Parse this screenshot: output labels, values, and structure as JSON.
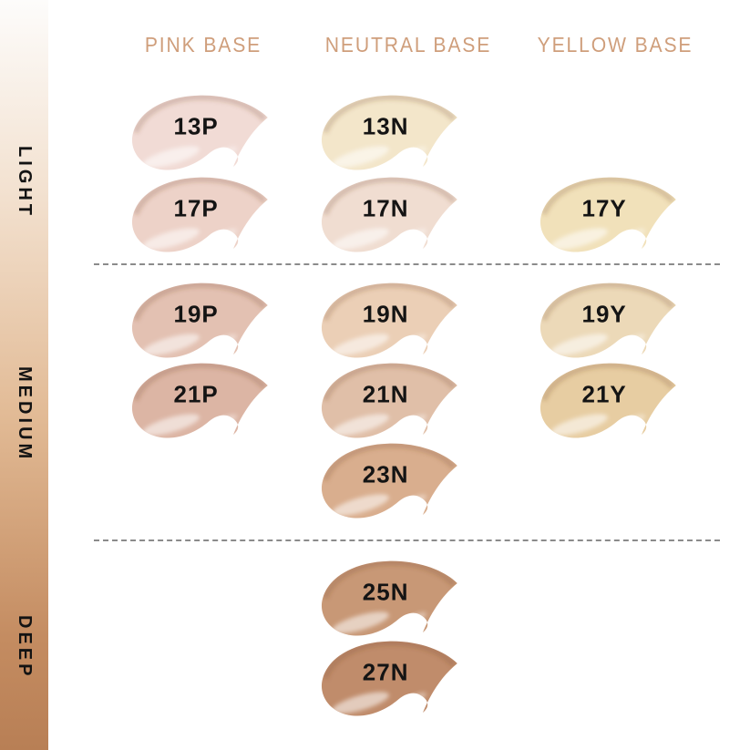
{
  "depth_axis": {
    "labels": [
      "LIGHT",
      "MEDIUM",
      "DEEP"
    ],
    "gradient": [
      "#fdfcfb",
      "#f3e2d1",
      "#e2bb96",
      "#c48c61",
      "#b87f55"
    ]
  },
  "columns": [
    {
      "id": "pink",
      "label": "PINK BASE"
    },
    {
      "id": "neutral",
      "label": "NEUTRAL BASE"
    },
    {
      "id": "yellow",
      "label": "YELLOW BASE"
    }
  ],
  "sections": [
    {
      "name": "LIGHT",
      "rows": [
        1,
        2
      ]
    },
    {
      "name": "MEDIUM",
      "rows": [
        3,
        4,
        5
      ]
    },
    {
      "name": "DEEP",
      "rows": [
        6,
        7
      ]
    }
  ],
  "shades": [
    {
      "label": "13P",
      "base": "pink",
      "depth": "LIGHT",
      "row": 1,
      "color": "#f1dbd5"
    },
    {
      "label": "17P",
      "base": "pink",
      "depth": "LIGHT",
      "row": 2,
      "color": "#edd2c8"
    },
    {
      "label": "19P",
      "base": "pink",
      "depth": "MEDIUM",
      "row": 3,
      "color": "#e3c1b2"
    },
    {
      "label": "21P",
      "base": "pink",
      "depth": "MEDIUM",
      "row": 4,
      "color": "#dcb5a4"
    },
    {
      "label": "13N",
      "base": "neutral",
      "depth": "LIGHT",
      "row": 1,
      "color": "#f3e6ca"
    },
    {
      "label": "17N",
      "base": "neutral",
      "depth": "LIGHT",
      "row": 2,
      "color": "#f0ddd1"
    },
    {
      "label": "19N",
      "base": "neutral",
      "depth": "MEDIUM",
      "row": 3,
      "color": "#ebcfb6"
    },
    {
      "label": "21N",
      "base": "neutral",
      "depth": "MEDIUM",
      "row": 4,
      "color": "#e0bfa8"
    },
    {
      "label": "23N",
      "base": "neutral",
      "depth": "MEDIUM",
      "row": 5,
      "color": "#d9ae8e"
    },
    {
      "label": "25N",
      "base": "neutral",
      "depth": "DEEP",
      "row": 6,
      "color": "#c89876"
    },
    {
      "label": "27N",
      "base": "neutral",
      "depth": "DEEP",
      "row": 7,
      "color": "#c08c6b"
    },
    {
      "label": "17Y",
      "base": "yellow",
      "depth": "LIGHT",
      "row": 2,
      "color": "#f1e1ba"
    },
    {
      "label": "19Y",
      "base": "yellow",
      "depth": "MEDIUM",
      "row": 3,
      "color": "#ecd9b8"
    },
    {
      "label": "21Y",
      "base": "yellow",
      "depth": "MEDIUM",
      "row": 4,
      "color": "#e7cda2"
    }
  ],
  "style": {
    "header_color": "#cf9e7b",
    "label_color": "#141414",
    "divider_color": "#8b8b8b"
  }
}
